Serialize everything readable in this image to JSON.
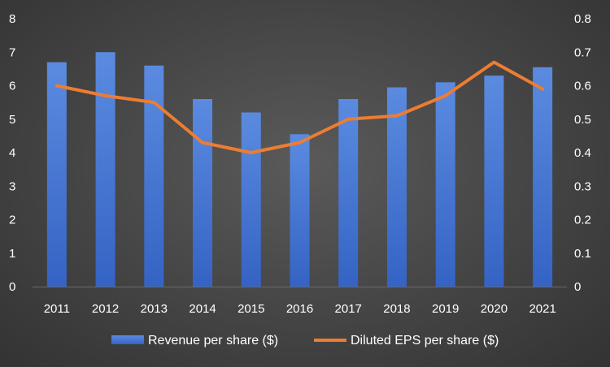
{
  "chart_data": {
    "type": "bar",
    "categories": [
      "2011",
      "2012",
      "2013",
      "2014",
      "2015",
      "2016",
      "2017",
      "2018",
      "2019",
      "2020",
      "2021"
    ],
    "series": [
      {
        "name": "Revenue per share ($)",
        "type": "bar",
        "axis": "left",
        "color": "#4a78d4",
        "values": [
          6.7,
          7.0,
          6.6,
          5.6,
          5.2,
          4.55,
          5.6,
          5.95,
          6.1,
          6.3,
          6.55
        ]
      },
      {
        "name": "Diluted EPS per share ($)",
        "type": "line",
        "axis": "right",
        "color": "#ed7d31",
        "values": [
          0.6,
          0.57,
          0.55,
          0.43,
          0.4,
          0.43,
          0.5,
          0.51,
          0.57,
          0.67,
          0.59
        ]
      }
    ],
    "y_left": {
      "ylim": [
        0,
        8
      ],
      "ticks": [
        "0",
        "1",
        "2",
        "3",
        "4",
        "5",
        "6",
        "7",
        "8"
      ]
    },
    "y_right": {
      "ylim": [
        0,
        0.8
      ],
      "ticks": [
        "0",
        "0.1",
        "0.2",
        "0.3",
        "0.4",
        "0.5",
        "0.6",
        "0.7",
        "0.8"
      ]
    },
    "grid": false,
    "legend_position": "bottom"
  },
  "colors": {
    "background": "#444444",
    "text": "#ffffff"
  }
}
